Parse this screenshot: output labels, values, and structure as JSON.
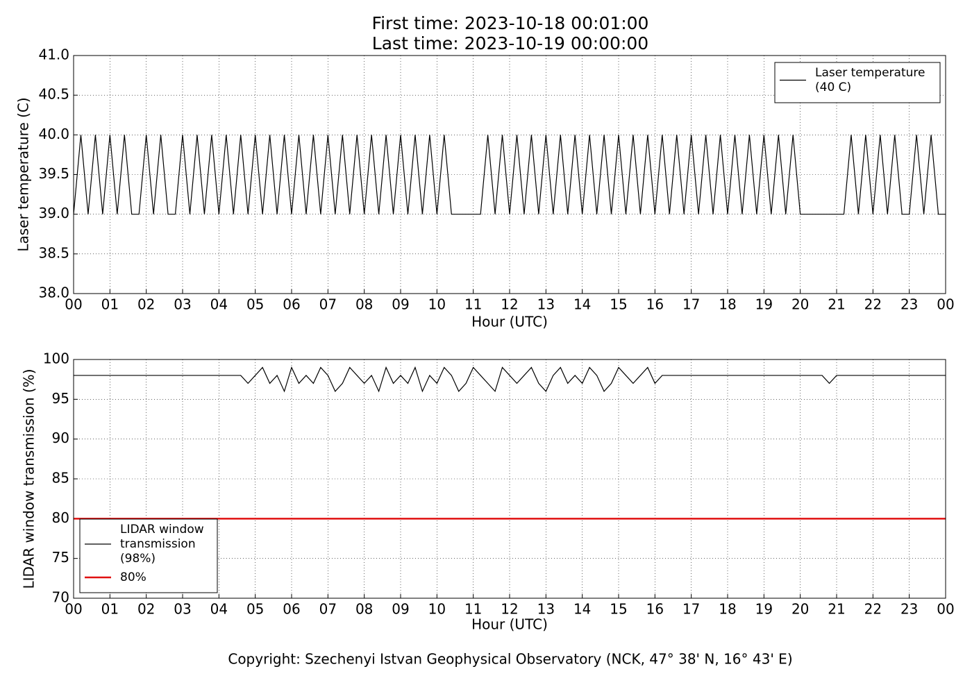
{
  "title": [
    "First time: 2023-10-18 00:01:00",
    "Last time: 2023-10-19 00:00:00"
  ],
  "footer": "Copyright: Szechenyi Istvan Geophysical Observatory (NCK, 47° 38' N, 16° 43' E)",
  "chart_data": [
    {
      "type": "line",
      "xlabel": "Hour (UTC)",
      "ylabel": "Laser temperature (C)",
      "grid": true,
      "legend": "upper right",
      "xlim": [
        0,
        24
      ],
      "ylim": [
        38,
        41
      ],
      "xticks": [
        {
          "value": 0,
          "label": "00"
        },
        {
          "value": 1,
          "label": "01"
        },
        {
          "value": 2,
          "label": "02"
        },
        {
          "value": 3,
          "label": "03"
        },
        {
          "value": 4,
          "label": "04"
        },
        {
          "value": 5,
          "label": "05"
        },
        {
          "value": 6,
          "label": "06"
        },
        {
          "value": 7,
          "label": "07"
        },
        {
          "value": 8,
          "label": "08"
        },
        {
          "value": 9,
          "label": "09"
        },
        {
          "value": 10,
          "label": "10"
        },
        {
          "value": 11,
          "label": "11"
        },
        {
          "value": 12,
          "label": "12"
        },
        {
          "value": 13,
          "label": "13"
        },
        {
          "value": 14,
          "label": "14"
        },
        {
          "value": 15,
          "label": "15"
        },
        {
          "value": 16,
          "label": "16"
        },
        {
          "value": 17,
          "label": "17"
        },
        {
          "value": 18,
          "label": "18"
        },
        {
          "value": 19,
          "label": "19"
        },
        {
          "value": 20,
          "label": "20"
        },
        {
          "value": 21,
          "label": "21"
        },
        {
          "value": 22,
          "label": "22"
        },
        {
          "value": 23,
          "label": "23"
        },
        {
          "value": 24,
          "label": "00"
        }
      ],
      "yticks": [
        {
          "value": 38,
          "label": "38.0"
        },
        38.5,
        {
          "value": 39,
          "label": "39.0"
        },
        39.5,
        {
          "value": 40,
          "label": "40.0"
        },
        40.5,
        {
          "value": 41,
          "label": "41.0"
        }
      ],
      "series": [
        {
          "name": [
            "Laser temperature",
            "(40 C)"
          ],
          "color": "#000000",
          "width": 1.2,
          "x": [
            0,
            0.2,
            0.4,
            0.6,
            0.8,
            1,
            1.2,
            1.4,
            1.6,
            1.8,
            2,
            2.2,
            2.4,
            2.6,
            2.8,
            3,
            3.2,
            3.4,
            3.6,
            3.8,
            4,
            4.2,
            4.4,
            4.6,
            4.8,
            5,
            5.2,
            5.4,
            5.6,
            5.8,
            6,
            6.2,
            6.4,
            6.6,
            6.8,
            7,
            7.2,
            7.4,
            7.6,
            7.8,
            8,
            8.2,
            8.4,
            8.6,
            8.8,
            9,
            9.2,
            9.4,
            9.6,
            9.8,
            10,
            10.2,
            10.4,
            10.6,
            10.8,
            11,
            11.2,
            11.4,
            11.6,
            11.8,
            12,
            12.2,
            12.4,
            12.6,
            12.8,
            13,
            13.2,
            13.4,
            13.6,
            13.8,
            14,
            14.2,
            14.4,
            14.6,
            14.8,
            15,
            15.2,
            15.4,
            15.6,
            15.8,
            16,
            16.2,
            16.4,
            16.6,
            16.8,
            17,
            17.2,
            17.4,
            17.6,
            17.8,
            18,
            18.2,
            18.4,
            18.6,
            18.8,
            19,
            19.2,
            19.4,
            19.6,
            19.8,
            20,
            20.2,
            20.4,
            20.6,
            20.8,
            21,
            21.2,
            21.4,
            21.6,
            21.8,
            22,
            22.2,
            22.4,
            22.6,
            22.8,
            23,
            23.2,
            23.4,
            23.6,
            23.8,
            24
          ],
          "values": [
            39,
            40,
            39,
            40,
            39,
            40,
            39,
            40,
            39,
            39,
            40,
            39,
            40,
            39,
            39,
            40,
            39,
            40,
            39,
            40,
            39,
            40,
            39,
            40,
            39,
            40,
            39,
            40,
            39,
            40,
            39,
            40,
            39,
            40,
            39,
            40,
            39,
            40,
            39,
            40,
            39,
            40,
            39,
            40,
            39,
            40,
            39,
            40,
            39,
            40,
            39,
            40,
            39,
            39,
            39,
            39,
            39,
            40,
            39,
            40,
            39,
            40,
            39,
            40,
            39,
            40,
            39,
            40,
            39,
            40,
            39,
            40,
            39,
            40,
            39,
            40,
            39,
            40,
            39,
            40,
            39,
            40,
            39,
            40,
            39,
            40,
            39,
            40,
            39,
            40,
            39,
            40,
            39,
            40,
            39,
            40,
            39,
            40,
            39,
            40,
            39,
            39,
            39,
            39,
            39,
            39,
            39,
            40,
            39,
            40,
            39,
            40,
            39,
            40,
            39,
            39,
            40,
            39,
            40,
            39,
            39
          ]
        }
      ]
    },
    {
      "type": "line",
      "xlabel": "Hour (UTC)",
      "ylabel": "LIDAR window transmission (%)",
      "grid": true,
      "legend": "lower left",
      "xlim": [
        0,
        24
      ],
      "ylim": [
        70,
        100
      ],
      "xticks": [
        {
          "value": 0,
          "label": "00"
        },
        {
          "value": 1,
          "label": "01"
        },
        {
          "value": 2,
          "label": "02"
        },
        {
          "value": 3,
          "label": "03"
        },
        {
          "value": 4,
          "label": "04"
        },
        {
          "value": 5,
          "label": "05"
        },
        {
          "value": 6,
          "label": "06"
        },
        {
          "value": 7,
          "label": "07"
        },
        {
          "value": 8,
          "label": "08"
        },
        {
          "value": 9,
          "label": "09"
        },
        {
          "value": 10,
          "label": "10"
        },
        {
          "value": 11,
          "label": "11"
        },
        {
          "value": 12,
          "label": "12"
        },
        {
          "value": 13,
          "label": "13"
        },
        {
          "value": 14,
          "label": "14"
        },
        {
          "value": 15,
          "label": "15"
        },
        {
          "value": 16,
          "label": "16"
        },
        {
          "value": 17,
          "label": "17"
        },
        {
          "value": 18,
          "label": "18"
        },
        {
          "value": 19,
          "label": "19"
        },
        {
          "value": 20,
          "label": "20"
        },
        {
          "value": 21,
          "label": "21"
        },
        {
          "value": 22,
          "label": "22"
        },
        {
          "value": 23,
          "label": "23"
        },
        {
          "value": 24,
          "label": "00"
        }
      ],
      "yticks": [
        70,
        75,
        80,
        85,
        90,
        95,
        100
      ],
      "series": [
        {
          "name": [
            "LIDAR window",
            "transmission",
            "(98%)"
          ],
          "color": "#000000",
          "width": 1.2,
          "x": [
            0,
            0.2,
            0.4,
            0.6,
            0.8,
            1,
            1.2,
            1.4,
            1.6,
            1.8,
            2,
            2.2,
            2.4,
            2.6,
            2.8,
            3,
            3.2,
            3.4,
            3.6,
            3.8,
            4,
            4.2,
            4.4,
            4.6,
            4.8,
            5,
            5.2,
            5.4,
            5.6,
            5.8,
            6,
            6.2,
            6.4,
            6.6,
            6.8,
            7,
            7.2,
            7.4,
            7.6,
            7.8,
            8,
            8.2,
            8.4,
            8.6,
            8.8,
            9,
            9.2,
            9.4,
            9.6,
            9.8,
            10,
            10.2,
            10.4,
            10.6,
            10.8,
            11,
            11.2,
            11.4,
            11.6,
            11.8,
            12,
            12.2,
            12.4,
            12.6,
            12.8,
            13,
            13.2,
            13.4,
            13.6,
            13.8,
            14,
            14.2,
            14.4,
            14.6,
            14.8,
            15,
            15.2,
            15.4,
            15.6,
            15.8,
            16,
            16.2,
            16.4,
            16.6,
            16.8,
            17,
            17.2,
            17.4,
            17.6,
            17.8,
            18,
            18.2,
            18.4,
            18.6,
            18.8,
            19,
            19.2,
            19.4,
            19.6,
            19.8,
            20,
            20.2,
            20.4,
            20.6,
            20.8,
            21,
            21.2,
            21.4,
            21.6,
            21.8,
            22,
            22.2,
            22.4,
            22.6,
            22.8,
            23,
            23.2,
            23.4,
            23.6,
            23.8,
            24
          ],
          "values": [
            98,
            98,
            98,
            98,
            98,
            98,
            98,
            98,
            98,
            98,
            98,
            98,
            98,
            98,
            98,
            98,
            98,
            98,
            98,
            98,
            98,
            98,
            98,
            98,
            97,
            98,
            99,
            97,
            98,
            96,
            99,
            97,
            98,
            97,
            99,
            98,
            96,
            97,
            99,
            98,
            97,
            98,
            96,
            99,
            97,
            98,
            97,
            99,
            96,
            98,
            97,
            99,
            98,
            96,
            97,
            99,
            98,
            97,
            96,
            99,
            98,
            97,
            98,
            99,
            97,
            96,
            98,
            99,
            97,
            98,
            97,
            99,
            98,
            96,
            97,
            99,
            98,
            97,
            98,
            99,
            97,
            98,
            98,
            98,
            98,
            98,
            98,
            98,
            98,
            98,
            98,
            98,
            98,
            98,
            98,
            98,
            98,
            98,
            98,
            98,
            98,
            98,
            98,
            98,
            97,
            98,
            98,
            98,
            98,
            98,
            98,
            98,
            98,
            98,
            98,
            98,
            98,
            98,
            98,
            98,
            98
          ]
        },
        {
          "name": [
            "80%"
          ],
          "color": "#e01010",
          "width": 2.5,
          "x": [
            0,
            24
          ],
          "values": [
            80,
            80
          ]
        }
      ]
    }
  ]
}
